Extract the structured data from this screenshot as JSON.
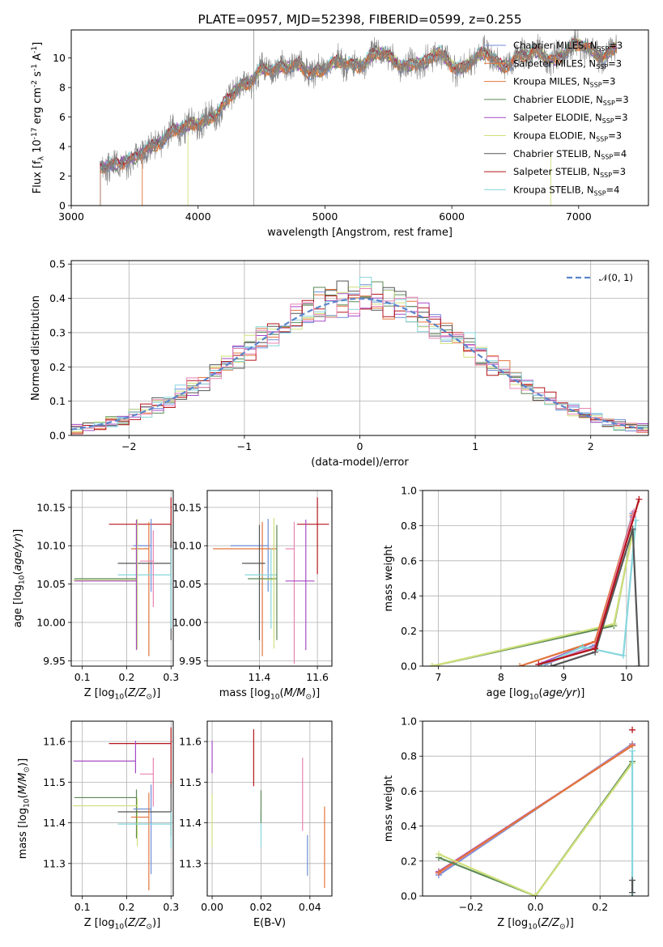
{
  "colors": {
    "blue": "#6f8fd8",
    "orange": "#e2743a",
    "green": "#5b8a57",
    "purple": "#a64bc6",
    "yellowgreen": "#cfe07a",
    "darkgray": "#555555",
    "red": "#b4151b",
    "cyan": "#86d6dc",
    "pink": "#e884b2",
    "gray": "#808080",
    "normal": "#5b85cc",
    "grid": "#b0b0b0"
  },
  "chart_data": [
    {
      "type": "line",
      "title": "PLATE=0957, MJD=52398, FIBERID=0599, z=0.255",
      "xlabel": "wavelength [Angstrom, rest frame]",
      "ylabel": "Flux [f$_\\lambda$ 10$^{-17}$ erg cm$^{-2}$ s$^{-1}$ A$^{-1}$]",
      "xlim": [
        3000,
        7550
      ],
      "ylim": [
        0,
        11.9
      ],
      "xticks": [
        3000,
        4000,
        5000,
        6000,
        7000
      ],
      "yticks": [
        0,
        2,
        4,
        6,
        8,
        10
      ],
      "data_series": {
        "name": "observed spectrum",
        "color": "gray"
      },
      "anchors": {
        "x": [
          3230,
          3300,
          3400,
          3500,
          3600,
          3700,
          3800,
          3900,
          4000,
          4100,
          4200,
          4300,
          4400,
          4500,
          4600,
          4700,
          4800,
          4900,
          5000,
          5100,
          5200,
          5300,
          5400,
          5500,
          5600,
          5700,
          5800,
          5900,
          6000,
          6100,
          6200,
          6300,
          6400,
          6500,
          6600,
          6700,
          6800,
          6900,
          7000,
          7100,
          7200,
          7300
        ],
        "y": [
          2.4,
          3.0,
          3.2,
          2.9,
          3.6,
          4.6,
          5.3,
          5.0,
          5.4,
          6.3,
          6.9,
          7.5,
          8.2,
          9.7,
          9.2,
          9.0,
          9.6,
          9.3,
          9.2,
          9.4,
          9.7,
          9.9,
          10.2,
          9.8,
          9.7,
          9.9,
          9.4,
          10.2,
          9.8,
          9.5,
          9.8,
          10.1,
          9.7,
          10.1,
          9.9,
          10.3,
          10.2,
          10.4,
          10.6,
          10.6,
          10.4,
          10.7
        ]
      },
      "legend_position": "upper right",
      "legend": [
        {
          "label": "Chabrier MILES, N$_{SSP}$=3",
          "color": "blue"
        },
        {
          "label": "Salpeter MILES, N$_{SSP}$=3",
          "color": "orange"
        },
        {
          "label": "Kroupa MILES, N$_{SSP}$=3",
          "color": "orange"
        },
        {
          "label": "Chabrier ELODIE, N$_{SSP}$=3",
          "color": "green"
        },
        {
          "label": "Salpeter ELODIE, N$_{SSP}$=3",
          "color": "purple"
        },
        {
          "label": "Kroupa ELODIE, N$_{SSP}$=3",
          "color": "yellowgreen"
        },
        {
          "label": "Chabrier STELIB, N$_{SSP}$=4",
          "color": "darkgray"
        },
        {
          "label": "Salpeter STELIB, N$_{SSP}$=3",
          "color": "red"
        },
        {
          "label": "Kroupa STELIB, N$_{SSP}$=4",
          "color": "cyan"
        }
      ],
      "model_starts": [
        3230,
        3230,
        3560,
        3230,
        3230,
        3920,
        3230,
        3230,
        3230
      ]
    },
    {
      "type": "line",
      "xlabel": "(data-model)/error",
      "ylabel": "Normed distribution",
      "xlim": [
        -2.5,
        2.5
      ],
      "ylim": [
        0,
        0.51
      ],
      "xticks": [
        -2,
        -1,
        0,
        1,
        2
      ],
      "yticks": [
        0.0,
        0.1,
        0.2,
        0.3,
        0.4,
        0.5
      ],
      "grid": true,
      "legend": [
        {
          "label": "$\\mathcal{N}(0, 1)$",
          "color": "normal",
          "dashed": true
        }
      ],
      "legend_position": "upper right",
      "bin_width": 0.1,
      "histograms": [
        {
          "color": "blue",
          "seed": 1
        },
        {
          "color": "orange",
          "seed": 2
        },
        {
          "color": "green",
          "seed": 3
        },
        {
          "color": "purple",
          "seed": 4
        },
        {
          "color": "yellowgreen",
          "seed": 5
        },
        {
          "color": "darkgray",
          "seed": 6
        },
        {
          "color": "red",
          "seed": 7
        },
        {
          "color": "cyan",
          "seed": 8
        },
        {
          "color": "pink",
          "seed": 9
        }
      ]
    },
    {
      "type": "scatter",
      "xlabel": "Z [log$_{10}$($Z/Z_\\odot$)]",
      "ylabel": "age  [log$_{10}$($age/yr$)]",
      "xlim": [
        0.075,
        0.305
      ],
      "ylim": [
        9.943,
        10.172
      ],
      "xticks": [
        0.1,
        0.2,
        0.3
      ],
      "yticks": [
        9.95,
        10.0,
        10.05,
        10.1,
        10.15
      ],
      "grid": true,
      "points": [
        {
          "color": "red",
          "x": 0.3,
          "xerr": [
            0.14,
            0.0
          ],
          "y": 10.128,
          "yerr": [
            0.065,
            0.035
          ]
        },
        {
          "color": "blue",
          "x": 0.255,
          "xerr": [
            0.04,
            0.0
          ],
          "y": 10.1,
          "yerr": [
            0.06,
            0.035
          ]
        },
        {
          "color": "orange",
          "x": 0.25,
          "xerr": [
            0.04,
            0.0
          ],
          "y": 10.096,
          "yerr": [
            0.14,
            0.035
          ]
        },
        {
          "color": "darkgray",
          "x": 0.3,
          "xerr": [
            0.12,
            0.0
          ],
          "y": 10.077,
          "yerr": [
            0.1,
            0.05
          ]
        },
        {
          "color": "cyan",
          "x": 0.3,
          "xerr": [
            0.12,
            0.0
          ],
          "y": 10.062,
          "yerr": [
            0.07,
            0.035
          ]
        },
        {
          "color": "green",
          "x": 0.222,
          "xerr": [
            0.14,
            0.0
          ],
          "y": 10.057,
          "yerr": [
            0.08,
            0.07
          ]
        },
        {
          "color": "yellowgreen",
          "x": 0.224,
          "xerr": [
            0.145,
            0.0
          ],
          "y": 10.055,
          "yerr": [
            0.09,
            0.08
          ]
        },
        {
          "color": "purple",
          "x": 0.222,
          "xerr": [
            0.14,
            0.0
          ],
          "y": 10.054,
          "yerr": [
            0.09,
            0.08
          ]
        },
        {
          "color": "pink",
          "x": 0.26,
          "xerr": [
            0.03,
            0.0
          ],
          "y": 10.08,
          "yerr": [
            0.06,
            0.04
          ]
        }
      ]
    },
    {
      "type": "scatter",
      "xlabel": "mass [log$_{10}$($M/M_\\odot$)]",
      "xlim": [
        11.22,
        11.65
      ],
      "ylim": [
        9.943,
        10.172
      ],
      "xticks": [
        11.4,
        11.6
      ],
      "yticks": [
        9.95,
        10.0,
        10.05,
        10.1,
        10.15
      ],
      "grid": true,
      "points": [
        {
          "color": "red",
          "x": 11.6,
          "xerr": [
            0.07,
            0.04
          ],
          "y": 10.128,
          "yerr": [
            0.065,
            0.035
          ]
        },
        {
          "color": "blue",
          "x": 11.43,
          "xerr": [
            0.13,
            0.0
          ],
          "y": 10.1,
          "yerr": [
            0.06,
            0.035
          ]
        },
        {
          "color": "orange",
          "x": 11.41,
          "xerr": [
            0.17,
            0.05
          ],
          "y": 10.096,
          "yerr": [
            0.14,
            0.035
          ]
        },
        {
          "color": "pink",
          "x": 11.52,
          "xerr": [
            0.03,
            0.0
          ],
          "y": 10.096,
          "yerr": [
            0.15,
            0.035
          ]
        },
        {
          "color": "darkgray",
          "x": 11.4,
          "xerr": [
            0.06,
            0.02
          ],
          "y": 10.077,
          "yerr": [
            0.1,
            0.05
          ]
        },
        {
          "color": "cyan",
          "x": 11.44,
          "xerr": [
            0.09,
            0.02
          ],
          "y": 10.062,
          "yerr": [
            0.07,
            0.035
          ]
        },
        {
          "color": "green",
          "x": 11.46,
          "xerr": [
            0.1,
            0.0
          ],
          "y": 10.057,
          "yerr": [
            0.08,
            0.07
          ]
        },
        {
          "color": "purple",
          "x": 11.56,
          "xerr": [
            0.07,
            0.03
          ],
          "y": 10.054,
          "yerr": [
            0.09,
            0.08
          ]
        },
        {
          "color": "yellowgreen",
          "x": 11.45,
          "xerr": [
            0.03,
            0.0
          ],
          "y": 10.056,
          "yerr": [
            0.09,
            0.08
          ]
        }
      ]
    },
    {
      "type": "line",
      "xlabel": "age  [log$_{10}$($age/yr$)]",
      "ylabel": "mass weight",
      "xlim": [
        6.75,
        10.35
      ],
      "ylim": [
        0,
        1.0
      ],
      "xticks": [
        7,
        8,
        9,
        10
      ],
      "yticks": [
        0.0,
        0.2,
        0.4,
        0.6,
        0.8,
        1.0
      ],
      "grid": true,
      "series": [
        {
          "color": "green",
          "x": [
            6.9,
            9.8,
            10.1
          ],
          "y": [
            0.0,
            0.23,
            0.77
          ]
        },
        {
          "color": "yellowgreen",
          "x": [
            6.9,
            9.8,
            10.1
          ],
          "y": [
            0.0,
            0.24,
            0.76
          ]
        },
        {
          "color": "purple",
          "x": [
            8.6,
            9.5,
            10.1
          ],
          "y": [
            0.01,
            0.14,
            0.85
          ]
        },
        {
          "color": "blue",
          "x": [
            8.7,
            9.5,
            10.1
          ],
          "y": [
            0.01,
            0.12,
            0.87
          ]
        },
        {
          "color": "orange",
          "x": [
            8.3,
            9.5,
            10.1
          ],
          "y": [
            0.0,
            0.14,
            0.86
          ]
        },
        {
          "color": "pink",
          "x": [
            8.65,
            9.5,
            10.12
          ],
          "y": [
            0.01,
            0.11,
            0.88
          ]
        },
        {
          "color": "cyan",
          "x": [
            8.6,
            9.3,
            9.95,
            10.15
          ],
          "y": [
            0.0,
            0.11,
            0.06,
            0.83
          ]
        },
        {
          "color": "darkgray",
          "x": [
            8.8,
            9.5,
            10.1,
            10.2
          ],
          "y": [
            0.0,
            0.08,
            0.78,
            0.0
          ]
        },
        {
          "color": "red",
          "x": [
            8.6,
            9.5,
            10.2
          ],
          "y": [
            0.01,
            0.1,
            0.95
          ]
        }
      ]
    },
    {
      "type": "scatter",
      "xlabel": "Z [log$_{10}$($Z/Z_\\odot$)]",
      "ylabel": "mass [log$_{10}$($M/M_\\odot$)]",
      "xlim": [
        0.075,
        0.305
      ],
      "ylim": [
        11.22,
        11.65
      ],
      "xticks": [
        0.1,
        0.2,
        0.3
      ],
      "yticks": [
        11.3,
        11.4,
        11.5,
        11.6
      ],
      "grid": true,
      "points": [
        {
          "color": "red",
          "x": 0.3,
          "xerr": [
            0.14,
            0.0
          ],
          "y": 11.595,
          "yerr": [
            0.11,
            0.04
          ]
        },
        {
          "color": "purple",
          "x": 0.22,
          "xerr": [
            0.14,
            0.0
          ],
          "y": 11.552,
          "yerr": [
            0.03,
            0.05
          ]
        },
        {
          "color": "pink",
          "x": 0.26,
          "xerr": [
            0.03,
            0.0
          ],
          "y": 11.52,
          "yerr": [
            0.08,
            0.04
          ]
        },
        {
          "color": "green",
          "x": 0.222,
          "xerr": [
            0.14,
            0.0
          ],
          "y": 11.462,
          "yerr": [
            0.1,
            0.02
          ]
        },
        {
          "color": "yellowgreen",
          "x": 0.224,
          "xerr": [
            0.145,
            0.0
          ],
          "y": 11.442,
          "yerr": [
            0.1,
            0.02
          ]
        },
        {
          "color": "blue",
          "x": 0.255,
          "xerr": [
            0.04,
            0.0
          ],
          "y": 11.434,
          "yerr": [
            0.16,
            0.06
          ]
        },
        {
          "color": "darkgray",
          "x": 0.3,
          "xerr": [
            0.12,
            0.0
          ],
          "y": 11.427,
          "yerr": [
            0.06,
            0.07
          ]
        },
        {
          "color": "orange",
          "x": 0.25,
          "xerr": [
            0.04,
            0.0
          ],
          "y": 11.414,
          "yerr": [
            0.18,
            0.06
          ]
        },
        {
          "color": "cyan",
          "x": 0.3,
          "xerr": [
            0.12,
            0.0
          ],
          "y": 11.397,
          "yerr": [
            0.06,
            0.03
          ]
        }
      ]
    },
    {
      "type": "scatter",
      "xlabel": "E(B-V)",
      "xlim": [
        -0.002,
        0.049
      ],
      "ylim": [
        11.22,
        11.65
      ],
      "xticks": [
        0.0,
        0.02,
        0.04
      ],
      "yticks": [
        11.3,
        11.4,
        11.5,
        11.6
      ],
      "grid": true,
      "points": [
        {
          "color": "purple",
          "x": 0.0,
          "y": 11.552,
          "yerr": [
            0.03,
            0.05
          ]
        },
        {
          "color": "yellowgreen",
          "x": 0.0,
          "y": 11.43,
          "yerr": [
            0.09,
            0.04
          ]
        },
        {
          "color": "red",
          "x": 0.017,
          "y": 11.56,
          "yerr": [
            0.07,
            0.07
          ]
        },
        {
          "color": "cyan",
          "x": 0.02,
          "y": 11.39,
          "yerr": [
            0.05,
            0.04
          ]
        },
        {
          "color": "green",
          "x": 0.02,
          "y": 11.45,
          "yerr": [
            0.05,
            0.03
          ]
        },
        {
          "color": "pink",
          "x": 0.037,
          "y": 11.47,
          "yerr": [
            0.09,
            0.09
          ]
        },
        {
          "color": "blue",
          "x": 0.039,
          "y": 11.33,
          "yerr": [
            0.06,
            0.04
          ]
        },
        {
          "color": "orange",
          "x": 0.046,
          "y": 11.33,
          "yerr": [
            0.09,
            0.11
          ]
        }
      ]
    },
    {
      "type": "line",
      "xlabel": "Z [log$_{10}$($Z/Z_\\odot$)]",
      "ylabel": "mass weight",
      "xlim": [
        -0.35,
        0.35
      ],
      "ylim": [
        0,
        1.0
      ],
      "xticks": [
        -0.2,
        0.0,
        0.2
      ],
      "yticks": [
        0.0,
        0.2,
        0.4,
        0.6,
        0.8,
        1.0
      ],
      "grid": true,
      "series": [
        {
          "color": "blue",
          "x": [
            -0.3,
            0.3
          ],
          "y": [
            0.12,
            0.87
          ]
        },
        {
          "color": "purple",
          "x": [
            -0.3,
            0.3
          ],
          "y": [
            0.14,
            0.86
          ]
        },
        {
          "color": "pink",
          "x": [
            -0.3,
            0.3
          ],
          "y": [
            0.13,
            0.865
          ]
        },
        {
          "color": "orange",
          "x": [
            -0.3,
            0.3
          ],
          "y": [
            0.135,
            0.86
          ]
        },
        {
          "color": "green",
          "x": [
            -0.3,
            0.0,
            0.3
          ],
          "y": [
            0.22,
            0.0,
            0.77
          ]
        },
        {
          "color": "yellowgreen",
          "x": [
            -0.3,
            0.0,
            0.3
          ],
          "y": [
            0.24,
            0.0,
            0.76
          ]
        },
        {
          "color": "cyan",
          "x": [
            0.3,
            0.3
          ],
          "y": [
            0.0,
            0.83
          ]
        },
        {
          "color": "darkgray",
          "x": [
            0.3,
            0.3
          ],
          "y": [
            0.02,
            0.09
          ]
        },
        {
          "color": "red",
          "x": [
            0.3
          ],
          "y": [
            0.95
          ]
        }
      ]
    }
  ]
}
